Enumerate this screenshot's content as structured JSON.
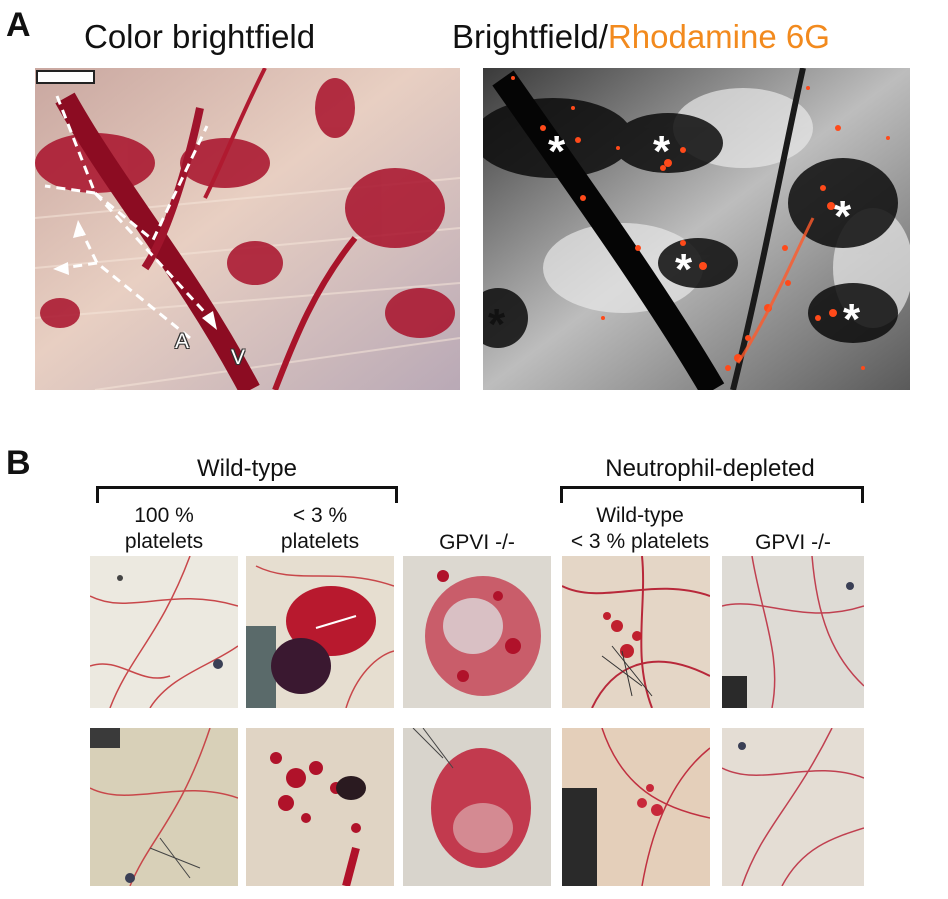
{
  "panel_a": {
    "letter": "A",
    "left_title": "Color brightfield",
    "right_title_prefix": "Brightfield/",
    "right_title_highlight": "Rhodamine 6G",
    "artery_label": "A",
    "vein_label": "V",
    "asterisk": "*"
  },
  "panel_b": {
    "letter": "B",
    "group_wildtype": "Wild-type",
    "group_neutrophil": "Neutrophil-depleted",
    "col1_line1": "100 %",
    "col1_line2": "platelets",
    "col2_line1": "< 3 %",
    "col2_line2": "platelets",
    "col3": "GPVI -/-",
    "col4_line1": "Wild-type",
    "col4_line2": "< 3 % platelets",
    "col5": "GPVI -/-"
  },
  "colors": {
    "highlight": "#f28a1e",
    "blood": "#b0122a",
    "fluorescence": "#ff4a1a"
  }
}
